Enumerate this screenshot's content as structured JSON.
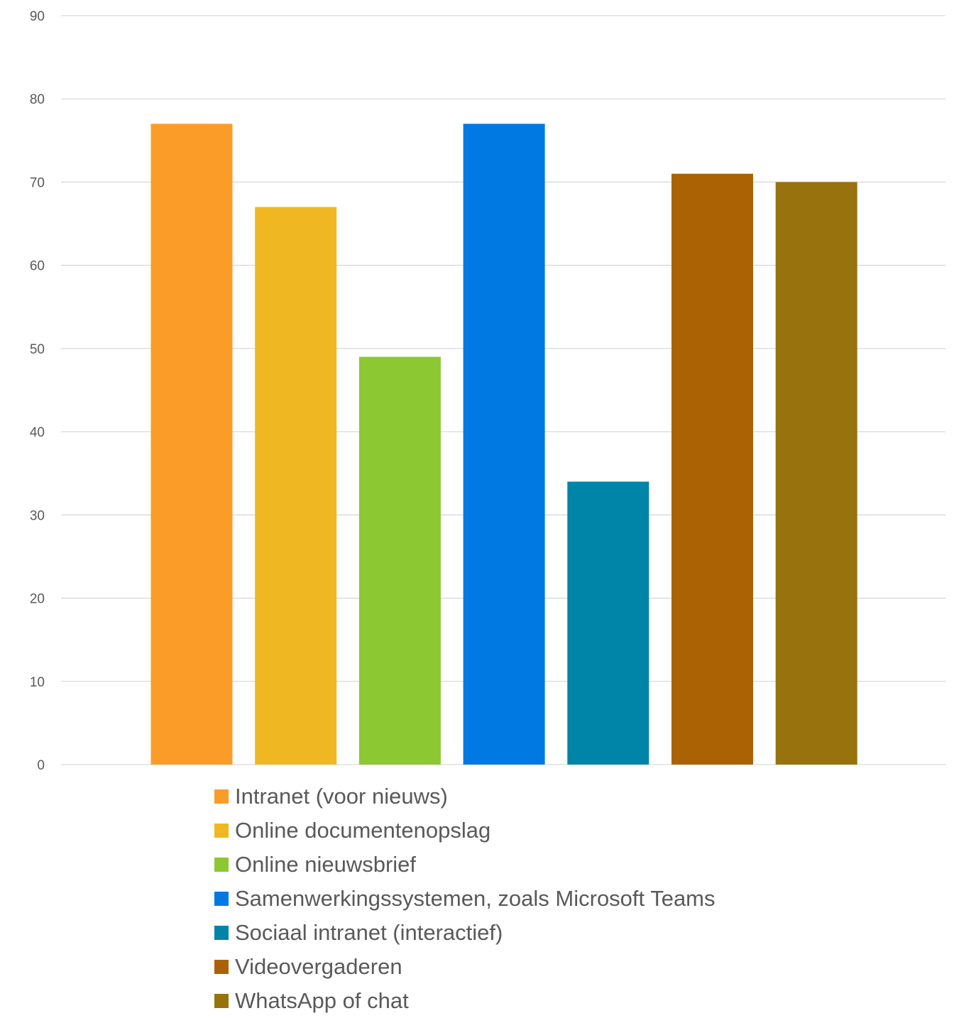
{
  "chart_data": {
    "type": "bar",
    "title": "",
    "xlabel": "",
    "ylabel": "",
    "ylim": [
      0,
      90
    ],
    "yticks": [
      0,
      10,
      20,
      30,
      40,
      50,
      60,
      70,
      80,
      90
    ],
    "grid": true,
    "legend": "bottom",
    "categories": [
      "Intranet (voor nieuws)",
      "Online documentenopslag",
      "Online nieuwsbrief",
      "Samenwerkingssystemen, zoals Microsoft Teams",
      "Sociaal intranet (interactief)",
      "Videovergaderen",
      "WhatsApp of chat"
    ],
    "values": [
      77,
      67,
      49,
      77,
      34,
      71,
      70
    ],
    "colors": [
      "#FB9C28",
      "#EFB822",
      "#8BC832",
      "#0079E2",
      "#0085A8",
      "#AB6205",
      "#97720D"
    ]
  }
}
